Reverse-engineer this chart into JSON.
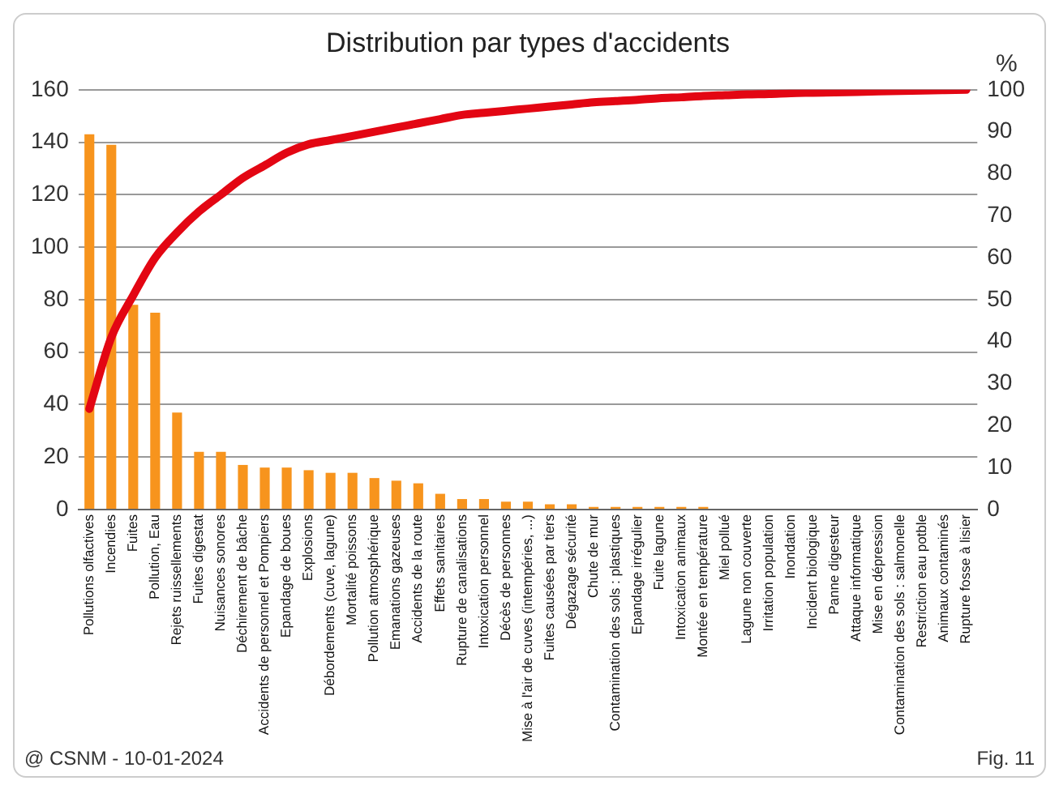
{
  "chart_data": {
    "type": "bar",
    "title": "Distribution par types d'accidents",
    "y2label": "%",
    "categories": [
      "Pollutions olfactives",
      "Incendies",
      "Fuites",
      "Pollution, Eau",
      "Rejets ruissellements",
      "Fuites digestat",
      "Nuisances sonores",
      "Déchirement de bâche",
      "Accidents de personnel et Pompiers",
      "Epandage de boues",
      "Explosions",
      "Débordements (cuve, lagune)",
      "Mortalité poissons",
      "Pollution atmosphérique",
      "Emanations gazeuses",
      "Accidents de la route",
      "Effets sanitaires",
      "Rupture de canalisations",
      "Intoxication personnel",
      "Décès de personnes",
      "Mise à l'air de cuves (intempéries, ...)",
      "Fuites causées par tiers",
      "Dégazage sécurité",
      "Chute de mur",
      "Contamination des sols : plastiques",
      "Epandage irrégulier",
      "Fuite lagune",
      "Intoxication animaux",
      "Montée en température",
      "Miel pollué",
      "Lagune non couverte",
      "Irritation population",
      "Inondation",
      "Incident biologique",
      "Panne digesteur",
      "Attaque informatique",
      "Mise en dépression",
      "Contamination des sols : salmonelle",
      "Restriction eau potble",
      "Animaux contaminés",
      "Rupture fosse à lisier"
    ],
    "series": [
      {
        "color": "#f7941d",
        "values": [
          143,
          139,
          78,
          75,
          37,
          22,
          22,
          17,
          16,
          16,
          15,
          14,
          14,
          12,
          11,
          10,
          6,
          4,
          4,
          3,
          3,
          2,
          2,
          1,
          1,
          1,
          1,
          1,
          1,
          0,
          0,
          0,
          0,
          0,
          0,
          0,
          0,
          0,
          0,
          0,
          0
        ]
      },
      {
        "type": "line",
        "axis": "y2",
        "color": "#e30613",
        "values": [
          24,
          41,
          51,
          60,
          66,
          71,
          75,
          79,
          82,
          85,
          87,
          88,
          89,
          90,
          91,
          92,
          93,
          94,
          94.5,
          95,
          95.5,
          96,
          96.5,
          97,
          97.3,
          97.6,
          98,
          98.2,
          98.5,
          98.7,
          98.9,
          99,
          99.2,
          99.3,
          99.4,
          99.5,
          99.6,
          99.7,
          99.8,
          99.9,
          100
        ]
      }
    ],
    "ylim": [
      0,
      160
    ],
    "yticks": [
      0,
      20,
      40,
      60,
      80,
      100,
      120,
      140,
      160
    ],
    "y2lim": [
      0,
      100
    ],
    "y2ticks": [
      0,
      10,
      20,
      30,
      40,
      50,
      60,
      70,
      80,
      90,
      100
    ],
    "grid": "y",
    "marker": "none",
    "line_style": "solid",
    "annotations": [
      "@ CSNM - 10-01-2024",
      "Fig. 11"
    ]
  }
}
